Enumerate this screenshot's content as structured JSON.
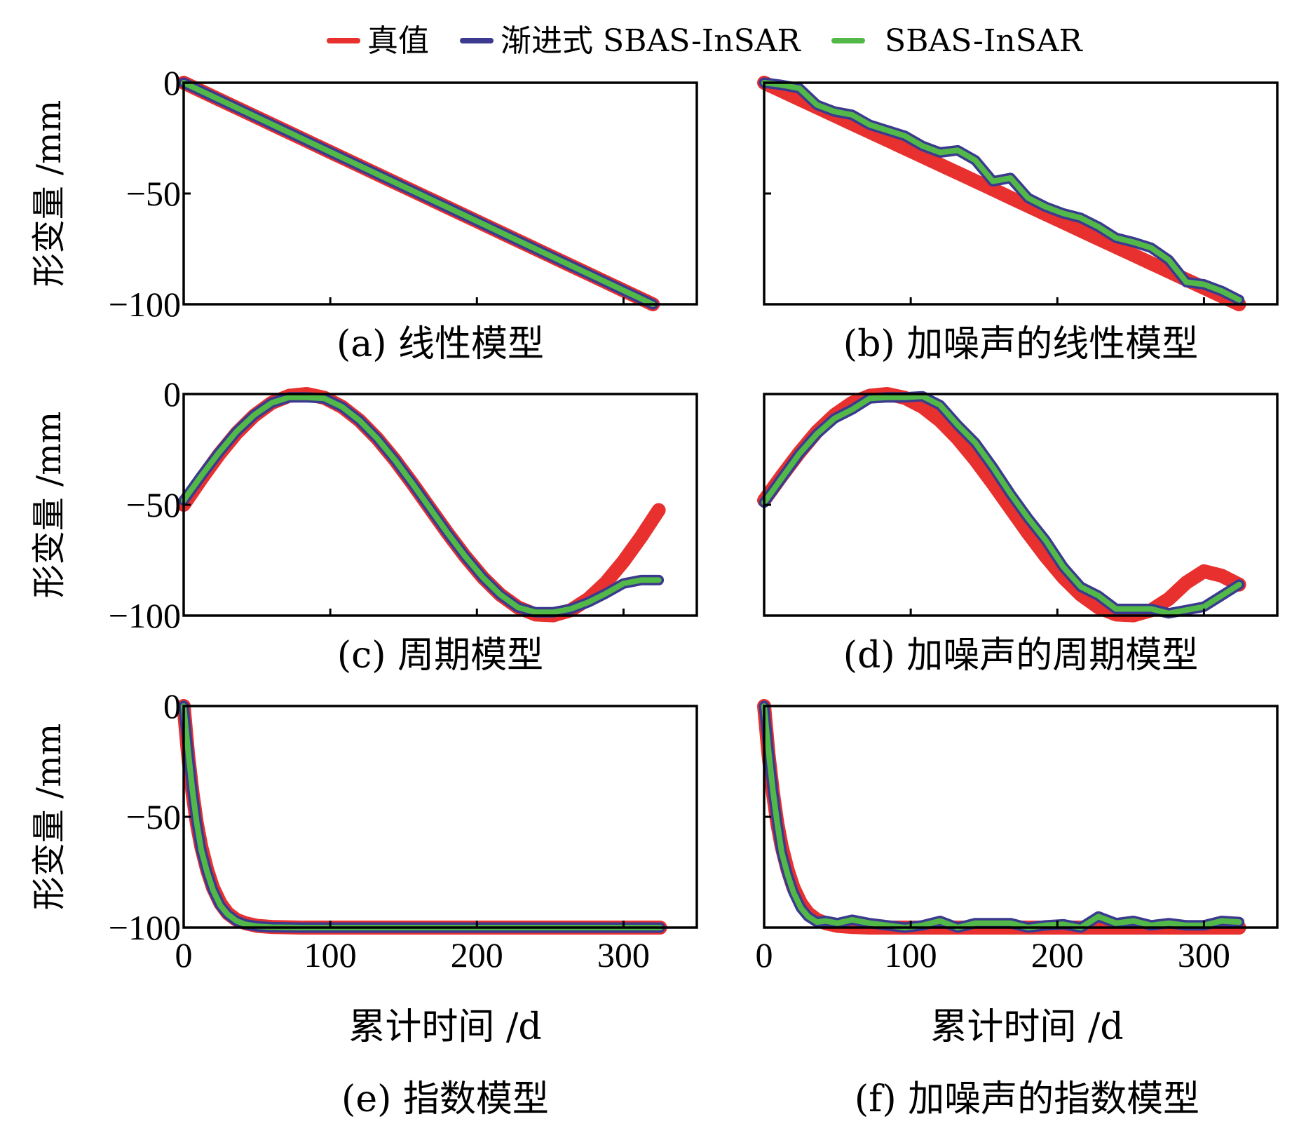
{
  "legend": [
    {
      "label": "真值",
      "color": "#e8302f"
    },
    {
      "label": "渐进式 SBAS-InSAR",
      "color": "#3b3a8f"
    },
    {
      "label": "SBAS-InSAR",
      "color": "#52b848"
    }
  ],
  "chart_data": [
    {
      "type": "line",
      "caption": "(a) 线性模型",
      "ylabel": "形变量 /mm",
      "xlabel": "",
      "xlim": [
        0,
        350
      ],
      "ylim": [
        -100,
        0
      ],
      "yticks": [
        "0",
        "−50",
        "−100"
      ],
      "xticks": [],
      "x": [
        0,
        20,
        40,
        60,
        80,
        100,
        120,
        140,
        160,
        180,
        200,
        220,
        240,
        260,
        280,
        300,
        320
      ],
      "series": [
        {
          "name": "真值",
          "values": [
            0,
            -6.25,
            -12.5,
            -18.75,
            -25,
            -31.25,
            -37.5,
            -43.75,
            -50,
            -56.25,
            -62.5,
            -68.75,
            -75,
            -81.25,
            -87.5,
            -93.75,
            -100
          ]
        },
        {
          "name": "渐进式 SBAS-InSAR",
          "values": [
            0,
            -6.25,
            -12.5,
            -18.75,
            -25,
            -31.25,
            -37.5,
            -43.75,
            -50,
            -56.25,
            -62.5,
            -68.75,
            -75,
            -81.25,
            -87.5,
            -93.75,
            -100
          ]
        },
        {
          "name": "SBAS-InSAR",
          "values": [
            0,
            -6.25,
            -12.5,
            -18.75,
            -25,
            -31.25,
            -37.5,
            -43.75,
            -50,
            -56.25,
            -62.5,
            -68.75,
            -75,
            -81.25,
            -87.5,
            -93.75,
            -100
          ]
        }
      ]
    },
    {
      "type": "line",
      "caption": "(b) 加噪声的线性模型",
      "ylabel": "",
      "xlabel": "",
      "xlim": [
        0,
        350
      ],
      "ylim": [
        -100,
        0
      ],
      "yticks": [],
      "xticks": [],
      "x": [
        0,
        12,
        24,
        36,
        48,
        60,
        72,
        84,
        96,
        108,
        120,
        132,
        144,
        156,
        168,
        180,
        192,
        204,
        216,
        228,
        240,
        252,
        264,
        276,
        288,
        300,
        312,
        324
      ],
      "series": [
        {
          "name": "真值",
          "values": [
            0,
            -3.7,
            -7.4,
            -11.1,
            -14.8,
            -18.5,
            -22.2,
            -25.9,
            -29.6,
            -33.3,
            -37,
            -40.7,
            -44.4,
            -48.1,
            -51.9,
            -55.6,
            -59.3,
            -63,
            -66.7,
            -70.4,
            -74.1,
            -77.8,
            -81.5,
            -85.2,
            -88.9,
            -92.6,
            -96.3,
            -100
          ]
        },
        {
          "name": "渐进式 SBAS-InSAR",
          "values": [
            0,
            -1,
            -2.5,
            -10,
            -13,
            -14.5,
            -19,
            -21.5,
            -24,
            -28.5,
            -31.5,
            -30.5,
            -35,
            -44.5,
            -43,
            -52,
            -56,
            -59,
            -61,
            -65,
            -70,
            -72,
            -74.5,
            -80,
            -90,
            -91,
            -94,
            -98
          ]
        },
        {
          "name": "SBAS-InSAR",
          "values": [
            0,
            -1,
            -2.5,
            -10,
            -13,
            -14.5,
            -19,
            -21.5,
            -24,
            -28.5,
            -31.5,
            -30.5,
            -35,
            -44.5,
            -43,
            -52,
            -56,
            -59,
            -61,
            -65,
            -70,
            -72,
            -74.5,
            -80,
            -90,
            -91,
            -94,
            -98
          ]
        }
      ]
    },
    {
      "type": "line",
      "caption": "(c) 周期模型",
      "ylabel": "形变量 /mm",
      "xlabel": "",
      "xlim": [
        0,
        350
      ],
      "ylim": [
        -100,
        0
      ],
      "yticks": [
        "0",
        "−50",
        "−100"
      ],
      "xticks": [],
      "x": [
        0,
        12,
        24,
        36,
        48,
        60,
        72,
        84,
        96,
        108,
        120,
        132,
        144,
        156,
        168,
        180,
        192,
        204,
        216,
        228,
        240,
        252,
        264,
        276,
        288,
        300,
        312,
        324
      ],
      "series": [
        {
          "name": "真值",
          "values": [
            -50,
            -38.4,
            -27.4,
            -17.7,
            -9.8,
            -4,
            -0.8,
            0,
            -1.7,
            -5.8,
            -12,
            -20.1,
            -29.7,
            -40.4,
            -51.6,
            -62.8,
            -73.3,
            -82.8,
            -90.6,
            -96.3,
            -99.5,
            -99.9,
            -97.6,
            -92.5,
            -85.1,
            -75.5,
            -64.5,
            -52.4
          ]
        },
        {
          "name": "渐进式 SBAS-InSAR",
          "values": [
            -48,
            -37,
            -26.5,
            -17,
            -9.5,
            -4,
            -1.5,
            -1.5,
            -2,
            -5.8,
            -12,
            -20.1,
            -29.7,
            -40.4,
            -51.6,
            -62.8,
            -73.3,
            -82.8,
            -90.6,
            -96.3,
            -98.5,
            -98.5,
            -97,
            -94,
            -90,
            -85.5,
            -84,
            -84
          ]
        },
        {
          "name": "SBAS-InSAR",
          "values": [
            -48,
            -37,
            -26.5,
            -17,
            -9.5,
            -4,
            -1.5,
            -1.5,
            -2,
            -5.8,
            -12,
            -20.1,
            -29.7,
            -40.4,
            -51.6,
            -62.8,
            -73.3,
            -82.8,
            -90.6,
            -96.3,
            -98.5,
            -98.5,
            -97,
            -94,
            -90,
            -85.5,
            -84,
            -84
          ]
        }
      ]
    },
    {
      "type": "line",
      "caption": "(d) 加噪声的周期模型",
      "ylabel": "",
      "xlabel": "",
      "xlim": [
        0,
        350
      ],
      "ylim": [
        -100,
        0
      ],
      "yticks": [],
      "xticks": [],
      "x": [
        0,
        12,
        24,
        36,
        48,
        60,
        72,
        84,
        96,
        108,
        120,
        132,
        144,
        156,
        168,
        180,
        192,
        204,
        216,
        228,
        240,
        252,
        264,
        276,
        288,
        300,
        312,
        324
      ],
      "series": [
        {
          "name": "真值",
          "values": [
            -48,
            -37,
            -26.5,
            -17,
            -9.5,
            -4,
            -0.8,
            0,
            -1.7,
            -5.8,
            -12,
            -20.1,
            -29.7,
            -40.4,
            -51.6,
            -62.8,
            -73.3,
            -82.8,
            -90.6,
            -96.3,
            -99.5,
            -99.9,
            -97.6,
            -92.5,
            -85.1,
            -80,
            -82,
            -86
          ]
        },
        {
          "name": "渐进式 SBAS-InSAR",
          "values": [
            -49,
            -38,
            -27,
            -18,
            -11,
            -7,
            -2,
            -1.5,
            -1.5,
            -1,
            -5,
            -14,
            -22,
            -33,
            -45,
            -56,
            -66,
            -78,
            -87,
            -91,
            -97,
            -97,
            -97,
            -99,
            -97.5,
            -96,
            -91,
            -86
          ]
        },
        {
          "name": "SBAS-InSAR",
          "values": [
            -49,
            -38,
            -27,
            -18,
            -11,
            -7,
            -2,
            -1.5,
            -1.5,
            -1,
            -5,
            -14,
            -22,
            -33,
            -45,
            -56,
            -66,
            -78,
            -87,
            -91,
            -97,
            -97,
            -97,
            -99,
            -97.5,
            -96,
            -91,
            -86
          ]
        }
      ]
    },
    {
      "type": "line",
      "caption": "(e) 指数模型",
      "ylabel": "形变量 /mm",
      "xlabel": "累计时间 /d",
      "xlim": [
        0,
        350
      ],
      "ylim": [
        -100,
        0
      ],
      "yticks": [
        "0",
        "−50",
        "−100"
      ],
      "xticks": [
        "0",
        "100",
        "200",
        "300"
      ],
      "x": [
        0,
        3,
        6,
        9,
        12,
        16,
        20,
        25,
        30,
        36,
        42,
        50,
        60,
        80,
        100,
        140,
        180,
        220,
        260,
        300,
        325
      ],
      "series": [
        {
          "name": "真值",
          "values": [
            0,
            -22,
            -39,
            -53,
            -63.5,
            -74,
            -82,
            -89,
            -93.5,
            -96.5,
            -98,
            -99.2,
            -99.7,
            -100,
            -100,
            -100,
            -100,
            -100,
            -100,
            -100,
            -100
          ]
        },
        {
          "name": "渐进式 SBAS-InSAR",
          "values": [
            0,
            -20,
            -38,
            -53,
            -65,
            -75,
            -83,
            -90,
            -94,
            -97,
            -98.5,
            -99.4,
            -99.8,
            -100,
            -100,
            -100,
            -100,
            -100,
            -100,
            -100,
            -100
          ]
        },
        {
          "name": "SBAS-InSAR",
          "values": [
            0,
            -20,
            -38,
            -53,
            -65,
            -75,
            -83,
            -90,
            -94,
            -97,
            -98.5,
            -99.4,
            -99.8,
            -100,
            -100,
            -100,
            -100,
            -100,
            -100,
            -100,
            -100
          ]
        }
      ]
    },
    {
      "type": "line",
      "caption": "(f) 加噪声的指数模型",
      "ylabel": "",
      "xlabel": "累计时间 /d",
      "xlim": [
        0,
        350
      ],
      "ylim": [
        -100,
        0
      ],
      "yticks": [],
      "xticks": [
        "0",
        "100",
        "200",
        "300"
      ],
      "x": [
        0,
        3,
        6,
        9,
        12,
        16,
        20,
        25,
        30,
        36,
        42,
        50,
        60,
        72,
        84,
        96,
        108,
        120,
        132,
        144,
        156,
        168,
        180,
        192,
        204,
        216,
        228,
        240,
        252,
        264,
        276,
        288,
        300,
        312,
        324
      ],
      "series": [
        {
          "name": "真值",
          "values": [
            0,
            -22,
            -39,
            -53,
            -63.5,
            -74,
            -82,
            -89,
            -93.5,
            -96.5,
            -98,
            -99.2,
            -99.7,
            -100,
            -100,
            -100,
            -100,
            -100,
            -100,
            -100,
            -100,
            -100,
            -100,
            -100,
            -100,
            -100,
            -100,
            -100,
            -100,
            -100,
            -100,
            -100,
            -100,
            -100,
            -100
          ]
        },
        {
          "name": "渐进式 SBAS-InSAR",
          "values": [
            0,
            -20,
            -38,
            -53,
            -66,
            -76,
            -84,
            -91,
            -95,
            -97.5,
            -97,
            -98,
            -96.5,
            -98,
            -99,
            -100,
            -99,
            -97,
            -100,
            -98,
            -98,
            -98,
            -100,
            -99,
            -98.5,
            -100,
            -95,
            -98,
            -97,
            -99,
            -98,
            -99,
            -99,
            -97,
            -97.5
          ]
        },
        {
          "name": "SBAS-InSAR",
          "values": [
            0,
            -20,
            -38,
            -53,
            -66,
            -76,
            -84,
            -91,
            -95,
            -97.5,
            -97,
            -98,
            -96.5,
            -98,
            -99,
            -100,
            -99,
            -97,
            -100,
            -98,
            -98,
            -98,
            -100,
            -99,
            -98.5,
            -100,
            -95,
            -98,
            -97,
            -99,
            -98,
            -99,
            -99,
            -97,
            -97.5
          ]
        }
      ]
    }
  ]
}
